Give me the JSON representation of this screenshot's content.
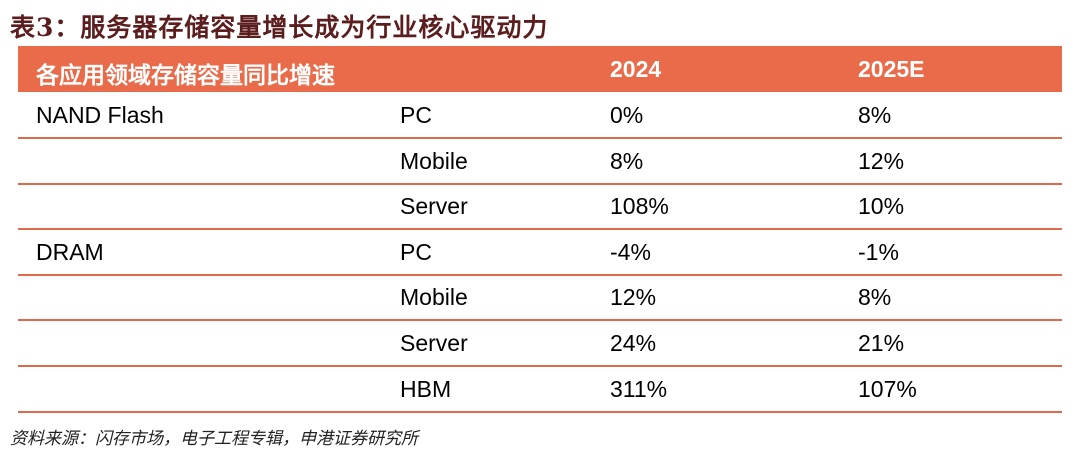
{
  "title": "表3：服务器存储容量增长成为行业核心驱动力",
  "header": {
    "col1": "各应用领域存储容量同比增速",
    "col3": "2024",
    "col4": "2025E"
  },
  "rows": [
    {
      "category": "NAND Flash",
      "segment": "PC",
      "y2024": "0%",
      "y2025": "8%"
    },
    {
      "category": "",
      "segment": "Mobile",
      "y2024": "8%",
      "y2025": "12%"
    },
    {
      "category": "",
      "segment": "Server",
      "y2024": "108%",
      "y2025": "10%"
    },
    {
      "category": "DRAM",
      "segment": "PC",
      "y2024": "-4%",
      "y2025": "-1%"
    },
    {
      "category": "",
      "segment": "Mobile",
      "y2024": "12%",
      "y2025": "8%"
    },
    {
      "category": "",
      "segment": "Server",
      "y2024": "24%",
      "y2025": "21%"
    },
    {
      "category": "",
      "segment": "HBM",
      "y2024": "311%",
      "y2025": "107%"
    }
  ],
  "source": "资料来源：闪存市场，电子工程专辑，申港证券研究所"
}
